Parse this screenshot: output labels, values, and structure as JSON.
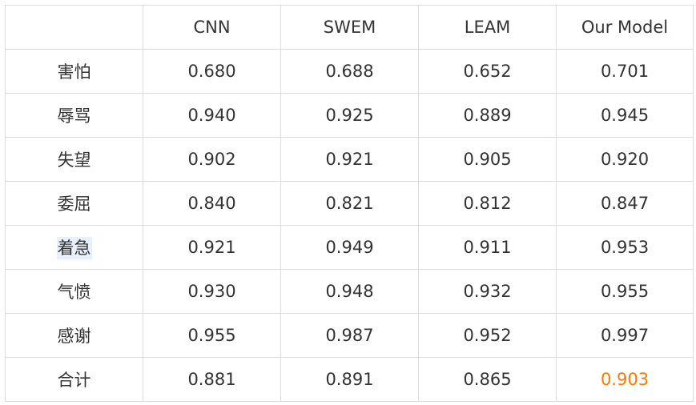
{
  "chart_data": {
    "type": "table",
    "columns": [
      "",
      "CNN",
      "SWEM",
      "LEAM",
      "Our Model"
    ],
    "rows": [
      {
        "label": "害怕",
        "values": [
          "0.680",
          "0.688",
          "0.652",
          "0.701"
        ]
      },
      {
        "label": "辱骂",
        "values": [
          "0.940",
          "0.925",
          "0.889",
          "0.945"
        ]
      },
      {
        "label": "失望",
        "values": [
          "0.902",
          "0.921",
          "0.905",
          "0.920"
        ]
      },
      {
        "label": "委屈",
        "values": [
          "0.840",
          "0.821",
          "0.812",
          "0.847"
        ]
      },
      {
        "label": "着急",
        "values": [
          "0.921",
          "0.949",
          "0.911",
          "0.953"
        ]
      },
      {
        "label": "气愤",
        "values": [
          "0.930",
          "0.948",
          "0.932",
          "0.955"
        ]
      },
      {
        "label": "感谢",
        "values": [
          "0.955",
          "0.987",
          "0.952",
          "0.997"
        ]
      },
      {
        "label": "合计",
        "values": [
          "0.881",
          "0.891",
          "0.865",
          "0.903"
        ]
      }
    ],
    "highlight_color": "#ff7a00"
  }
}
